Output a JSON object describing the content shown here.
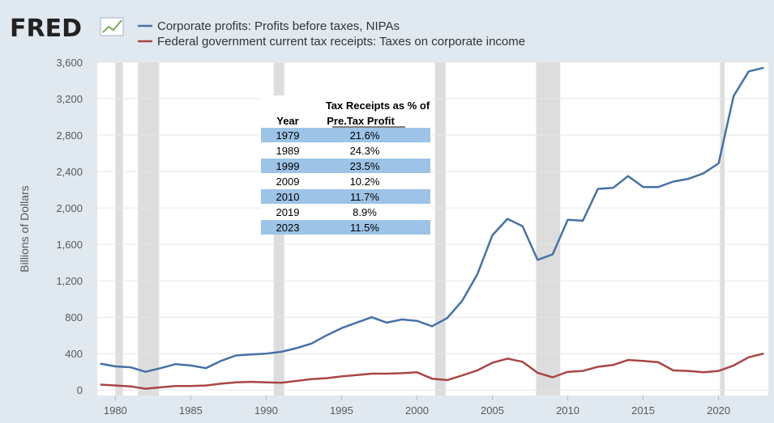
{
  "logo": {
    "text": "FRED"
  },
  "chart_data": {
    "type": "line",
    "ylabel": "Billions of Dollars",
    "xlabel": "",
    "xlim": [
      1978.8,
      2023.3
    ],
    "ylim": [
      -60,
      3600
    ],
    "y_ticks": [
      0,
      400,
      800,
      1200,
      1600,
      2000,
      2400,
      2800,
      3200,
      3600
    ],
    "y_tick_labels": [
      "0",
      "400",
      "800",
      "1,200",
      "1,600",
      "2,000",
      "2,400",
      "2,800",
      "3,200",
      "3,600"
    ],
    "x_ticks": [
      1980,
      1985,
      1990,
      1995,
      2000,
      2005,
      2010,
      2015,
      2020
    ],
    "x_tick_labels": [
      "1980",
      "1985",
      "1990",
      "1995",
      "2000",
      "2005",
      "2010",
      "2015",
      "2020"
    ],
    "grid": "horizontal",
    "legend_position": "top-left",
    "recessions": [
      [
        1980.0,
        1980.5
      ],
      [
        1981.5,
        1982.9
      ],
      [
        1990.5,
        1991.2
      ],
      [
        2001.2,
        2001.9
      ],
      [
        2007.9,
        2009.5
      ],
      [
        2020.1,
        2020.4
      ]
    ],
    "series": [
      {
        "name": "Corporate profits: Profits before taxes, NIPAs",
        "color": "#4572a7",
        "x": [
          1979,
          1980,
          1981,
          1982,
          1983,
          1984,
          1985,
          1986,
          1987,
          1988,
          1989,
          1990,
          1991,
          1992,
          1993,
          1994,
          1995,
          1996,
          1997,
          1998,
          1999,
          2000,
          2001,
          2002,
          2003,
          2004,
          2005,
          2006,
          2007,
          2008,
          2009,
          2010,
          2011,
          2012,
          2013,
          2014,
          2015,
          2016,
          2017,
          2018,
          2019,
          2020,
          2021,
          2022,
          2023
        ],
        "y": [
          290,
          260,
          250,
          200,
          240,
          285,
          270,
          240,
          320,
          380,
          390,
          400,
          420,
          460,
          510,
          600,
          680,
          740,
          800,
          740,
          775,
          760,
          700,
          790,
          980,
          1270,
          1700,
          1880,
          1800,
          1430,
          1490,
          1870,
          1860,
          2210,
          2220,
          2350,
          2230,
          2230,
          2290,
          2320,
          2380,
          2490,
          3230,
          3500,
          3540
        ]
      },
      {
        "name": "Federal government current tax receipts: Taxes on corporate income",
        "color": "#aa4643",
        "x": [
          1979,
          1980,
          1981,
          1982,
          1983,
          1984,
          1985,
          1986,
          1987,
          1988,
          1989,
          1990,
          1991,
          1992,
          1993,
          1994,
          1995,
          1996,
          1997,
          1998,
          1999,
          2000,
          2001,
          2002,
          2003,
          2004,
          2005,
          2006,
          2007,
          2008,
          2009,
          2010,
          2011,
          2012,
          2013,
          2014,
          2015,
          2016,
          2017,
          2018,
          2019,
          2020,
          2021,
          2022,
          2023
        ],
        "y": [
          60,
          50,
          40,
          15,
          30,
          45,
          45,
          50,
          70,
          85,
          90,
          85,
          80,
          100,
          120,
          130,
          150,
          165,
          180,
          180,
          185,
          195,
          125,
          110,
          160,
          215,
          300,
          345,
          310,
          190,
          140,
          200,
          210,
          255,
          275,
          330,
          320,
          305,
          215,
          210,
          195,
          210,
          270,
          360,
          400
        ]
      }
    ],
    "table": {
      "title_line1": "Tax Receipts as % of",
      "col1_header": "Year",
      "col2_header": "Pre.Tax Profit",
      "rows": [
        {
          "year": "1979",
          "value": "21.6%"
        },
        {
          "year": "1989",
          "value": "24.3%"
        },
        {
          "year": "1999",
          "value": "23.5%"
        },
        {
          "year": "2009",
          "value": "10.2%"
        },
        {
          "year": "2010",
          "value": "11.7%"
        },
        {
          "year": "2019",
          "value": "8.9%"
        },
        {
          "year": "2023",
          "value": "11.5%"
        }
      ],
      "stripe_color": "#9dc3e6"
    }
  }
}
